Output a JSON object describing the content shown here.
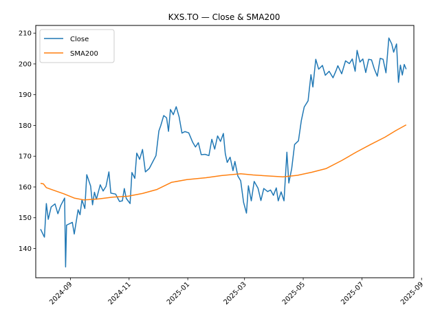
{
  "chart_data": {
    "type": "line",
    "title": "KXS.TO — Close & SMA200",
    "xlabel": "",
    "ylabel": "",
    "xlim": [
      "2024-07-27",
      "2025-08-24"
    ],
    "ylim": [
      130.5,
      212.5
    ],
    "x_ticks": [
      "2024-09",
      "2024-11",
      "2025-01",
      "2025-03",
      "2025-05",
      "2025-07",
      "2025-09"
    ],
    "y_ticks": [
      140,
      150,
      160,
      170,
      180,
      190,
      200,
      210
    ],
    "grid": false,
    "legend_position": "top-left",
    "series": [
      {
        "name": "Close",
        "color": "#1f77b4",
        "points": [
          [
            "2024-08-01",
            146.3
          ],
          [
            "2024-08-05",
            143.7
          ],
          [
            "2024-08-07",
            154.6
          ],
          [
            "2024-08-09",
            149.5
          ],
          [
            "2024-08-12",
            153.5
          ],
          [
            "2024-08-16",
            154.5
          ],
          [
            "2024-08-19",
            151.3
          ],
          [
            "2024-08-22",
            154.0
          ],
          [
            "2024-08-26",
            156.4
          ],
          [
            "2024-08-27",
            134.0
          ],
          [
            "2024-08-28",
            147.6
          ],
          [
            "2024-09-03",
            148.5
          ],
          [
            "2024-09-05",
            144.7
          ],
          [
            "2024-09-09",
            152.6
          ],
          [
            "2024-09-11",
            151.0
          ],
          [
            "2024-09-13",
            155.8
          ],
          [
            "2024-09-16",
            153.0
          ],
          [
            "2024-09-18",
            164.0
          ],
          [
            "2024-09-22",
            160.3
          ],
          [
            "2024-09-24",
            154.2
          ],
          [
            "2024-09-26",
            158.3
          ],
          [
            "2024-09-28",
            156.0
          ],
          [
            "2024-10-02",
            160.7
          ],
          [
            "2024-10-05",
            158.7
          ],
          [
            "2024-10-08",
            160.2
          ],
          [
            "2024-10-11",
            164.9
          ],
          [
            "2024-10-13",
            158.0
          ],
          [
            "2024-10-18",
            157.7
          ],
          [
            "2024-10-22",
            155.3
          ],
          [
            "2024-10-25",
            155.5
          ],
          [
            "2024-10-27",
            159.5
          ],
          [
            "2024-10-29",
            156.3
          ],
          [
            "2024-11-02",
            154.6
          ],
          [
            "2024-11-04",
            164.7
          ],
          [
            "2024-11-07",
            162.8
          ],
          [
            "2024-11-09",
            171.0
          ],
          [
            "2024-11-12",
            169.0
          ],
          [
            "2024-11-15",
            172.2
          ],
          [
            "2024-11-18",
            164.9
          ],
          [
            "2024-11-22",
            166.0
          ],
          [
            "2024-11-26",
            168.4
          ],
          [
            "2024-11-29",
            170.2
          ],
          [
            "2024-12-02",
            178.2
          ],
          [
            "2024-12-04",
            180.0
          ],
          [
            "2024-12-07",
            183.2
          ],
          [
            "2024-12-10",
            182.5
          ],
          [
            "2024-12-12",
            178.1
          ],
          [
            "2024-12-14",
            185.2
          ],
          [
            "2024-12-17",
            183.5
          ],
          [
            "2024-12-20",
            186.1
          ],
          [
            "2024-12-23",
            182.8
          ],
          [
            "2024-12-26",
            177.5
          ],
          [
            "2024-12-29",
            178.0
          ],
          [
            "2025-01-02",
            177.6
          ],
          [
            "2025-01-06",
            174.6
          ],
          [
            "2025-01-09",
            173.0
          ],
          [
            "2025-01-12",
            174.4
          ],
          [
            "2025-01-15",
            170.5
          ],
          [
            "2025-01-19",
            170.6
          ],
          [
            "2025-01-23",
            170.2
          ],
          [
            "2025-01-26",
            175.5
          ],
          [
            "2025-01-29",
            172.3
          ],
          [
            "2025-02-01",
            176.6
          ],
          [
            "2025-02-04",
            174.8
          ],
          [
            "2025-02-07",
            177.4
          ],
          [
            "2025-02-09",
            170.8
          ],
          [
            "2025-02-11",
            168.0
          ],
          [
            "2025-02-14",
            169.7
          ],
          [
            "2025-02-17",
            165.3
          ],
          [
            "2025-02-19",
            168.3
          ],
          [
            "2025-02-22",
            163.6
          ],
          [
            "2025-02-25",
            162.0
          ],
          [
            "2025-02-28",
            155.0
          ],
          [
            "2025-03-03",
            151.5
          ],
          [
            "2025-03-05",
            160.4
          ],
          [
            "2025-03-08",
            155.5
          ],
          [
            "2025-03-11",
            161.8
          ],
          [
            "2025-03-15",
            159.6
          ],
          [
            "2025-03-18",
            155.6
          ],
          [
            "2025-03-21",
            159.5
          ],
          [
            "2025-03-25",
            158.5
          ],
          [
            "2025-03-28",
            159.0
          ],
          [
            "2025-03-31",
            157.3
          ],
          [
            "2025-04-03",
            159.7
          ],
          [
            "2025-04-05",
            155.5
          ],
          [
            "2025-04-08",
            158.4
          ],
          [
            "2025-04-11",
            155.5
          ],
          [
            "2025-04-14",
            171.3
          ],
          [
            "2025-04-16",
            161.3
          ],
          [
            "2025-04-19",
            166.0
          ],
          [
            "2025-04-22",
            173.8
          ],
          [
            "2025-04-26",
            175.0
          ],
          [
            "2025-04-29",
            181.6
          ],
          [
            "2025-05-02",
            186.0
          ],
          [
            "2025-05-06",
            188.0
          ],
          [
            "2025-05-09",
            196.5
          ],
          [
            "2025-05-11",
            192.5
          ],
          [
            "2025-05-14",
            201.5
          ],
          [
            "2025-05-17",
            198.3
          ],
          [
            "2025-05-21",
            199.5
          ],
          [
            "2025-05-24",
            196.3
          ],
          [
            "2025-05-28",
            197.6
          ],
          [
            "2025-06-01",
            195.5
          ],
          [
            "2025-06-04",
            197.7
          ],
          [
            "2025-06-06",
            199.4
          ],
          [
            "2025-06-10",
            196.8
          ],
          [
            "2025-06-14",
            201.0
          ],
          [
            "2025-06-18",
            200.1
          ],
          [
            "2025-06-21",
            201.6
          ],
          [
            "2025-06-24",
            197.6
          ],
          [
            "2025-06-26",
            204.4
          ],
          [
            "2025-06-29",
            200.6
          ],
          [
            "2025-07-02",
            201.6
          ],
          [
            "2025-07-05",
            197.2
          ],
          [
            "2025-07-08",
            201.5
          ],
          [
            "2025-07-11",
            201.3
          ],
          [
            "2025-07-14",
            198.3
          ],
          [
            "2025-07-17",
            196.0
          ],
          [
            "2025-07-20",
            201.8
          ],
          [
            "2025-07-23",
            201.5
          ],
          [
            "2025-07-26",
            197.1
          ],
          [
            "2025-07-29",
            208.4
          ],
          [
            "2025-08-01",
            206.5
          ],
          [
            "2025-08-03",
            203.8
          ],
          [
            "2025-08-06",
            206.5
          ],
          [
            "2025-08-08",
            194.0
          ],
          [
            "2025-08-10",
            199.6
          ],
          [
            "2025-08-12",
            196.4
          ],
          [
            "2025-08-14",
            199.8
          ],
          [
            "2025-08-16",
            198.3
          ]
        ]
      },
      {
        "name": "SMA200",
        "color": "#ff7f0e",
        "points": [
          [
            "2024-08-01",
            161.2
          ],
          [
            "2024-08-04",
            161.0
          ],
          [
            "2024-08-07",
            159.8
          ],
          [
            "2024-08-15",
            158.9
          ],
          [
            "2024-08-25",
            157.8
          ],
          [
            "2024-09-05",
            156.4
          ],
          [
            "2024-09-15",
            155.8
          ],
          [
            "2024-09-30",
            156.1
          ],
          [
            "2024-10-15",
            156.7
          ],
          [
            "2024-10-31",
            157.0
          ],
          [
            "2024-11-15",
            157.9
          ],
          [
            "2024-11-30",
            159.2
          ],
          [
            "2024-12-15",
            161.5
          ],
          [
            "2024-12-31",
            162.4
          ],
          [
            "2025-01-20",
            163.0
          ],
          [
            "2025-02-05",
            163.7
          ],
          [
            "2025-02-25",
            164.3
          ],
          [
            "2025-03-10",
            163.9
          ],
          [
            "2025-03-25",
            163.6
          ],
          [
            "2025-04-10",
            163.3
          ],
          [
            "2025-04-25",
            163.8
          ],
          [
            "2025-05-10",
            164.8
          ],
          [
            "2025-05-25",
            166.0
          ],
          [
            "2025-06-10",
            168.6
          ],
          [
            "2025-06-25",
            171.3
          ],
          [
            "2025-07-10",
            173.8
          ],
          [
            "2025-07-25",
            176.2
          ],
          [
            "2025-08-05",
            178.3
          ],
          [
            "2025-08-16",
            180.2
          ]
        ]
      }
    ]
  }
}
